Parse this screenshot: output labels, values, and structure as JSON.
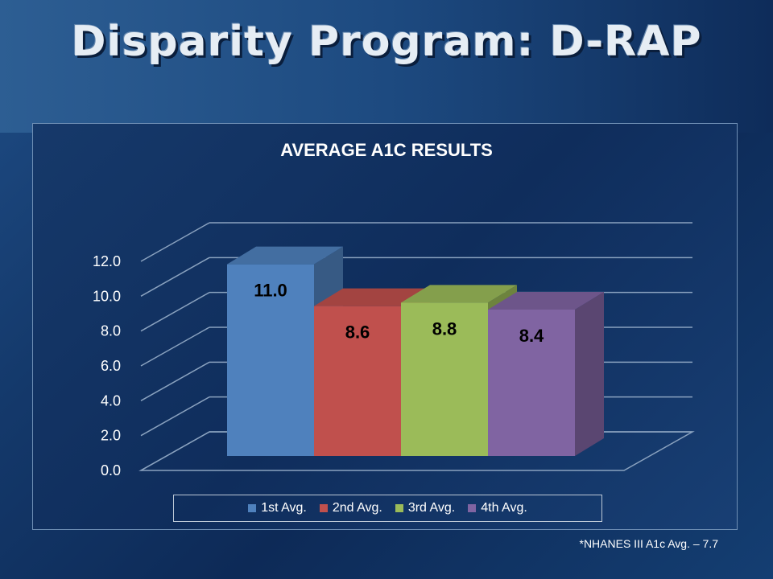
{
  "slide": {
    "title": "Disparity Program:  D-RAP",
    "footnote": "*NHANES III A1c Avg. – 7.7"
  },
  "chart_data": {
    "type": "bar",
    "title": "AVERAGE A1C RESULTS",
    "categories": [
      "1st Avg.",
      "2nd Avg.",
      "3rd Avg.",
      "4th Avg."
    ],
    "values": [
      11.0,
      8.6,
      8.8,
      8.4
    ],
    "value_labels": [
      "11.0",
      "8.6",
      "8.8",
      "8.4"
    ],
    "colors": [
      "#4f81bd",
      "#c0504d",
      "#9bbb59",
      "#8064a2"
    ],
    "ylim": [
      0,
      12
    ],
    "yticks": [
      "0.0",
      "2.0",
      "4.0",
      "6.0",
      "8.0",
      "10.0",
      "12.0"
    ],
    "grid": true,
    "legend_position": "bottom",
    "style": "3d-clustered"
  }
}
